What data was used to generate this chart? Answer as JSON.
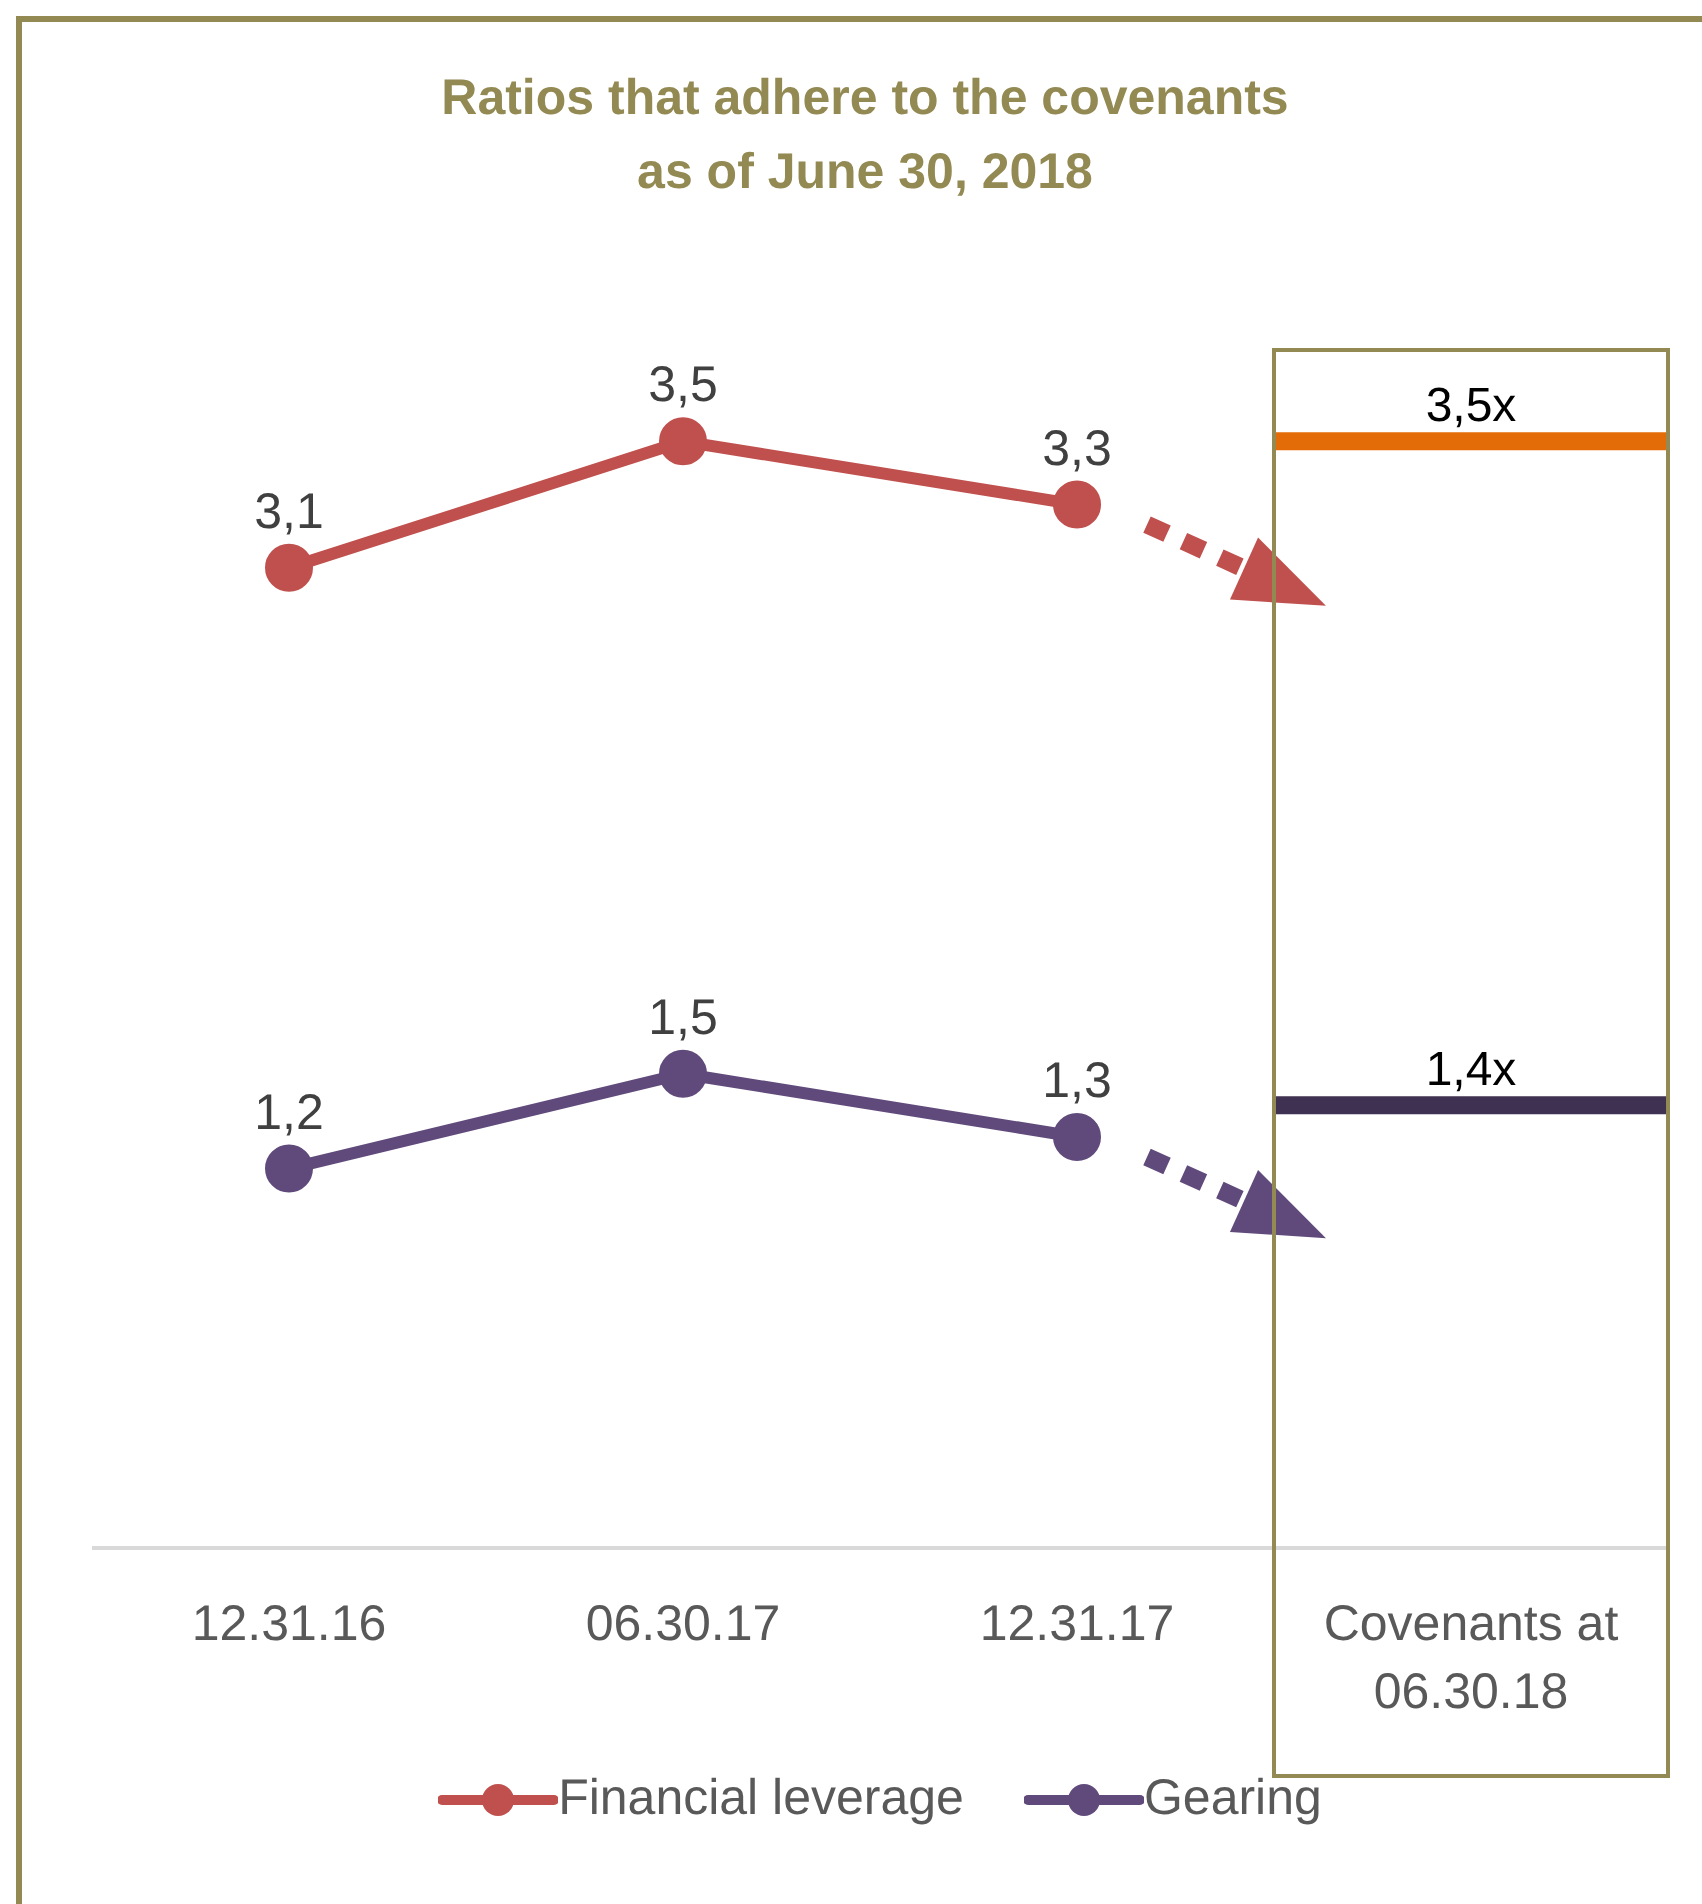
{
  "chart_data": {
    "type": "line",
    "title": "Ratios that adhere to the covenants\nas of June 30, 2018",
    "categories": [
      "12.31.16",
      "06.30.17",
      "12.31.17",
      "Covenants at 06.30.18"
    ],
    "series": [
      {
        "name": "Financial leverage",
        "color": "#c0504d",
        "values": [
          3.1,
          3.5,
          3.3,
          null
        ],
        "value_labels": [
          "3,1",
          "3,5",
          "3,3",
          null
        ]
      },
      {
        "name": "Gearing",
        "color": "#604a7b",
        "values": [
          1.2,
          1.5,
          1.3,
          null
        ],
        "value_labels": [
          "1,2",
          "1,5",
          "1,3",
          null
        ]
      }
    ],
    "ref_lines": [
      {
        "axis": "y",
        "value": 3.5,
        "label": "3,5x",
        "color": "#e36c09"
      },
      {
        "axis": "y",
        "value": 1.4,
        "label": "1,4x",
        "color": "#3f3151"
      }
    ],
    "legend": "bottom",
    "marker": "circle",
    "line_style": "solid"
  }
}
